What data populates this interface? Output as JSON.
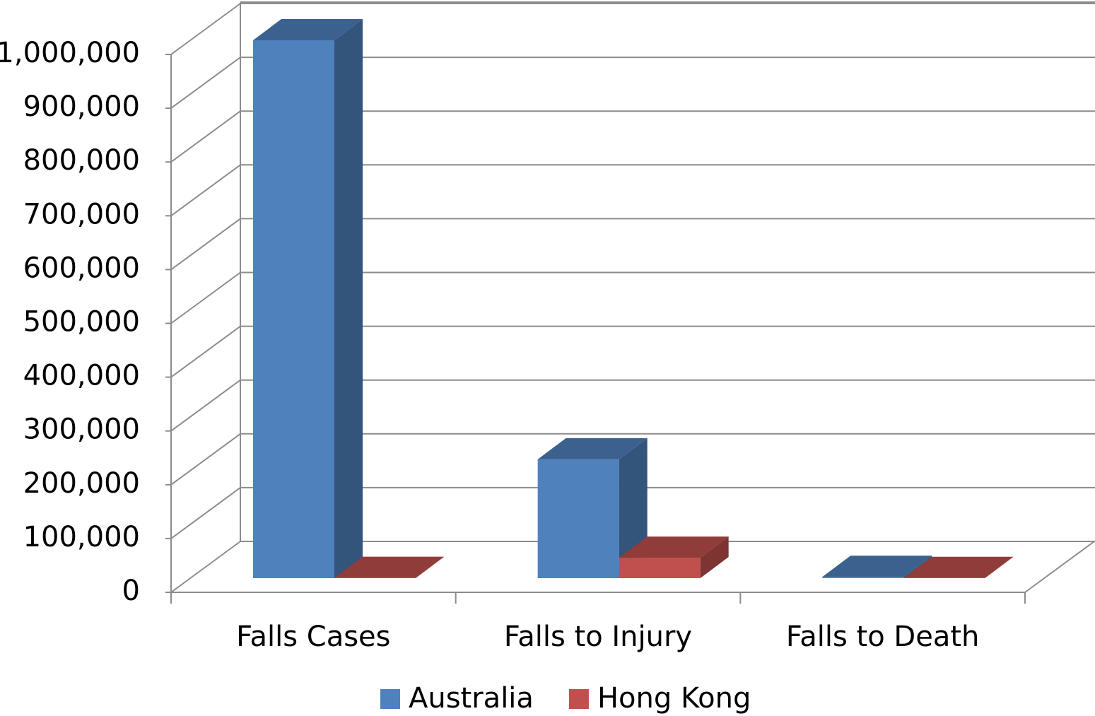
{
  "chart_data": {
    "type": "bar3d",
    "categories": [
      "Falls Cases",
      "Falls to Injury",
      "Falls to Death"
    ],
    "series": [
      {
        "name": "Australia",
        "color": "#4f81bd",
        "values": [
          1000000,
          221000,
          2500
        ]
      },
      {
        "name": "Hong Kong",
        "color": "#c0504d",
        "values": [
          500,
          38000,
          300
        ]
      }
    ],
    "ylim": [
      0,
      1000000
    ],
    "yticks": [
      0,
      {
        "value": 100000,
        "label": "100,000"
      },
      {
        "value": 200000,
        "label": "200,000"
      },
      {
        "value": 300000,
        "label": "300,000"
      },
      {
        "value": 400000,
        "label": "400,000"
      },
      {
        "value": 500000,
        "label": "500,000"
      },
      {
        "value": 600000,
        "label": "600,000"
      },
      {
        "value": 700000,
        "label": "700,000"
      },
      {
        "value": 800000,
        "label": "800,000"
      },
      {
        "value": 900000,
        "label": "900,000"
      },
      {
        "value": 1000000,
        "label": "1,000,000"
      }
    ],
    "grid": true,
    "legend": "bottom"
  }
}
